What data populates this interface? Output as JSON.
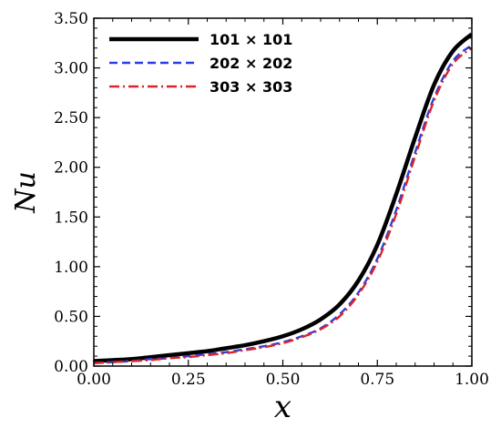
{
  "chart_data": {
    "type": "line",
    "xlabel": "x",
    "ylabel": "Nu",
    "xlim": [
      0,
      1
    ],
    "ylim": [
      0,
      3.5
    ],
    "x_ticks": [
      "0.00",
      "0.25",
      "0.50",
      "0.75",
      "1.00"
    ],
    "y_ticks": [
      "0.00",
      "0.50",
      "1.00",
      "1.50",
      "2.00",
      "2.50",
      "3.00",
      "3.50"
    ],
    "legend_position": "top-left",
    "grid": false,
    "series": [
      {
        "name": "101 × 101",
        "color": "#000000",
        "style": "solid",
        "x": [
          0,
          0.05,
          0.1,
          0.15,
          0.2,
          0.25,
          0.3,
          0.35,
          0.4,
          0.45,
          0.5,
          0.55,
          0.6,
          0.65,
          0.7,
          0.75,
          0.8,
          0.85,
          0.9,
          0.95,
          1.0
        ],
        "y": [
          0.05,
          0.06,
          0.07,
          0.09,
          0.11,
          0.13,
          0.15,
          0.18,
          0.21,
          0.25,
          0.3,
          0.37,
          0.47,
          0.62,
          0.86,
          1.22,
          1.73,
          2.3,
          2.83,
          3.17,
          3.34
        ]
      },
      {
        "name": "202 × 202",
        "color": "#2b3de0",
        "style": "dashed",
        "x": [
          0,
          0.05,
          0.1,
          0.15,
          0.2,
          0.25,
          0.3,
          0.35,
          0.4,
          0.45,
          0.5,
          0.55,
          0.6,
          0.65,
          0.7,
          0.75,
          0.8,
          0.85,
          0.9,
          0.95,
          1.0
        ],
        "y": [
          0.03,
          0.04,
          0.05,
          0.07,
          0.08,
          0.1,
          0.12,
          0.14,
          0.17,
          0.2,
          0.24,
          0.3,
          0.38,
          0.52,
          0.74,
          1.08,
          1.57,
          2.15,
          2.7,
          3.07,
          3.23
        ]
      },
      {
        "name": "303 × 303",
        "color": "#d9242b",
        "style": "dashdot",
        "x": [
          0,
          0.05,
          0.1,
          0.15,
          0.2,
          0.25,
          0.3,
          0.35,
          0.4,
          0.45,
          0.5,
          0.55,
          0.6,
          0.65,
          0.7,
          0.75,
          0.8,
          0.85,
          0.9,
          0.95,
          1.0
        ],
        "y": [
          0.03,
          0.04,
          0.05,
          0.06,
          0.08,
          0.09,
          0.11,
          0.13,
          0.16,
          0.19,
          0.23,
          0.29,
          0.37,
          0.5,
          0.72,
          1.05,
          1.53,
          2.11,
          2.67,
          3.04,
          3.2
        ]
      }
    ]
  }
}
